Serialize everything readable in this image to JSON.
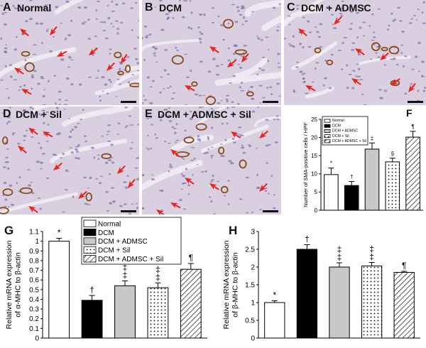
{
  "panels": [
    {
      "letter": "A",
      "title": "Normal"
    },
    {
      "letter": "B",
      "title": "DCM"
    },
    {
      "letter": "C",
      "title": "DCM + ADMSC"
    },
    {
      "letter": "D",
      "title": "DCM + Sil"
    },
    {
      "letter": "E",
      "title": "DCM + ADMSC + Sil"
    }
  ],
  "legend_entries": [
    "Normal",
    "DCM",
    "DCM + ADMSC",
    "DCM + Sil",
    "DCM + ADMSC + Sil"
  ],
  "bar_colors": [
    "#ffffff",
    "#000000",
    "#c8c8c8",
    "dots",
    "hatch"
  ],
  "chart_data": [
    {
      "panel": "F",
      "type": "bar",
      "categories": [
        "Normal",
        "DCM",
        "DCM + ADMSC",
        "DCM + Sil",
        "DCM + ADMSC + Sil"
      ],
      "values": [
        9.8,
        6.8,
        16.8,
        13.3,
        20.1
      ],
      "errors": [
        1.8,
        1.1,
        1.7,
        1.0,
        1.6
      ],
      "annotations": [
        "*",
        "†",
        "‡",
        "§",
        "¶"
      ],
      "ylabel": "Number of SMA-positive cells / HPF",
      "ylim": [
        0,
        25
      ],
      "yticks": [
        0,
        5,
        10,
        15,
        20,
        25
      ],
      "legend": "top-left"
    },
    {
      "panel": "G",
      "type": "bar",
      "categories": [
        "Normal",
        "DCM",
        "DCM + ADMSC",
        "DCM + Sil",
        "DCM + ADMSC + Sil"
      ],
      "values": [
        1.0,
        0.39,
        0.54,
        0.52,
        0.71
      ],
      "errors": [
        0.03,
        0.05,
        0.05,
        0.05,
        0.06
      ],
      "annotations": [
        "*",
        "†",
        "‡\n‡",
        "‡\n‡",
        "¶"
      ],
      "ylabel": "Relative mRNA expression\nof α-MHC to β-actin",
      "ylim": [
        0,
        1.1
      ],
      "yticks": [
        "0",
        "0.1",
        "0.2",
        "0.3",
        "0.4",
        "0.5",
        "0.6",
        "0.7",
        "0.8",
        "0.9",
        "1",
        "1.1"
      ],
      "legend": "top-right"
    },
    {
      "panel": "H",
      "type": "bar",
      "categories": [
        "Normal",
        "DCM",
        "DCM + ADMSC",
        "DCM + Sil",
        "DCM + ADMSC + Sil"
      ],
      "values": [
        1.0,
        2.5,
        2.0,
        2.03,
        1.85
      ],
      "errors": [
        0.05,
        0.13,
        0.12,
        0.1,
        0.03
      ],
      "annotations": [
        "*",
        "†",
        "‡\n‡",
        "‡\n‡",
        "¶"
      ],
      "ylabel": "Relative mRNA expression\nof β-MHC to β-actin",
      "ylim": [
        0,
        3
      ],
      "yticks": [
        "0",
        "0.5",
        "1",
        "1.5",
        "2",
        "2.5",
        "3"
      ]
    }
  ]
}
